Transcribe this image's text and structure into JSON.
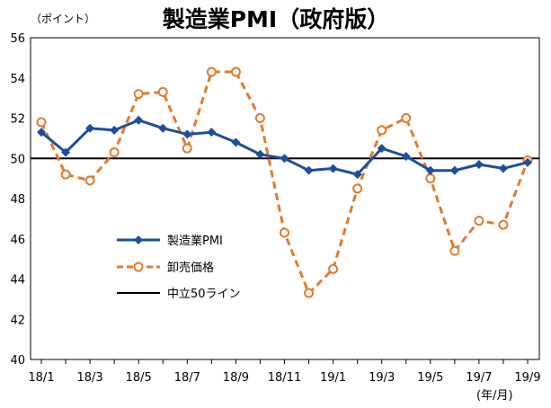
{
  "chart_data": {
    "type": "line",
    "title": "製造業PMI（政府版）",
    "ylabel": "（ポイント）",
    "xlabel": "(年/月)",
    "ylim": [
      40,
      56
    ],
    "yticks": [
      40,
      42,
      44,
      46,
      48,
      50,
      52,
      54,
      56
    ],
    "x": [
      "18/1",
      "18/2",
      "18/3",
      "18/4",
      "18/5",
      "18/6",
      "18/7",
      "18/8",
      "18/9",
      "18/10",
      "18/11",
      "18/12",
      "19/1",
      "19/2",
      "19/3",
      "19/4",
      "19/5",
      "19/6",
      "19/7",
      "19/8",
      "19/9"
    ],
    "xtick_labels": [
      "18/1",
      "18/3",
      "18/5",
      "18/7",
      "18/9",
      "18/11",
      "19/1",
      "19/3",
      "19/5",
      "19/7",
      "19/9"
    ],
    "series": [
      {
        "name": "製造業PMI",
        "color": "#1f4e9c",
        "style": "solid-diamond",
        "values": [
          51.3,
          50.3,
          51.5,
          51.4,
          51.9,
          51.5,
          51.2,
          51.3,
          50.8,
          50.2,
          50.0,
          49.4,
          49.5,
          49.2,
          50.5,
          50.1,
          49.4,
          49.4,
          49.7,
          49.5,
          49.8
        ]
      },
      {
        "name": "卸売価格",
        "color": "#e07b30",
        "style": "dashed-circle",
        "values": [
          51.8,
          49.2,
          48.9,
          50.3,
          53.2,
          53.3,
          50.5,
          54.3,
          54.3,
          52.0,
          46.3,
          43.3,
          44.5,
          48.5,
          51.4,
          52.0,
          49.0,
          45.4,
          46.9,
          46.7,
          49.9
        ]
      }
    ],
    "reference_line": {
      "name": "中立50ライン",
      "value": 50,
      "color": "#000000"
    },
    "legend": [
      "製造業PMI",
      "卸売価格",
      "中立50ライン"
    ],
    "legend_position": "lower-left"
  }
}
